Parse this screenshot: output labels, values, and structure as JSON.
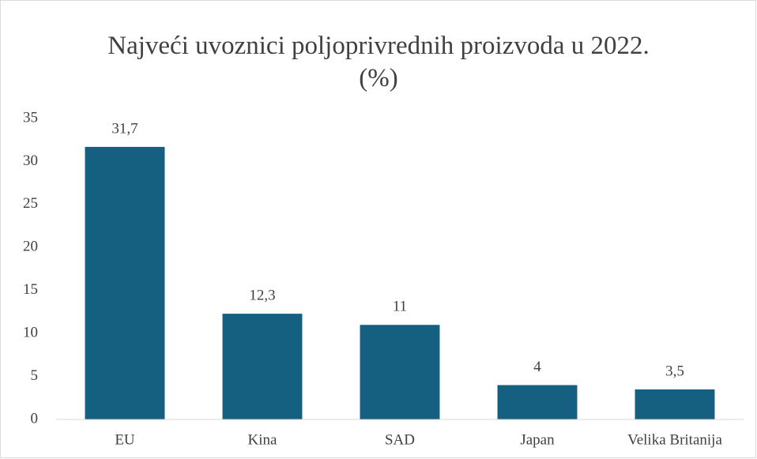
{
  "chart_data": {
    "type": "bar",
    "title": "Najveći uvoznici poljoprivrednih proizvoda u 2022. (%)",
    "categories": [
      "EU",
      "Kina",
      "SAD",
      "Japan",
      "Velika Britanija"
    ],
    "values": [
      31.7,
      12.3,
      11,
      4,
      3.5
    ],
    "value_labels": [
      "31,7",
      "12,3",
      "11",
      "4",
      "3,5"
    ],
    "color": "#155f80",
    "ylim": [
      0,
      35
    ],
    "yticks": [
      0,
      5,
      10,
      15,
      20,
      25,
      30,
      35
    ],
    "grid": false
  }
}
